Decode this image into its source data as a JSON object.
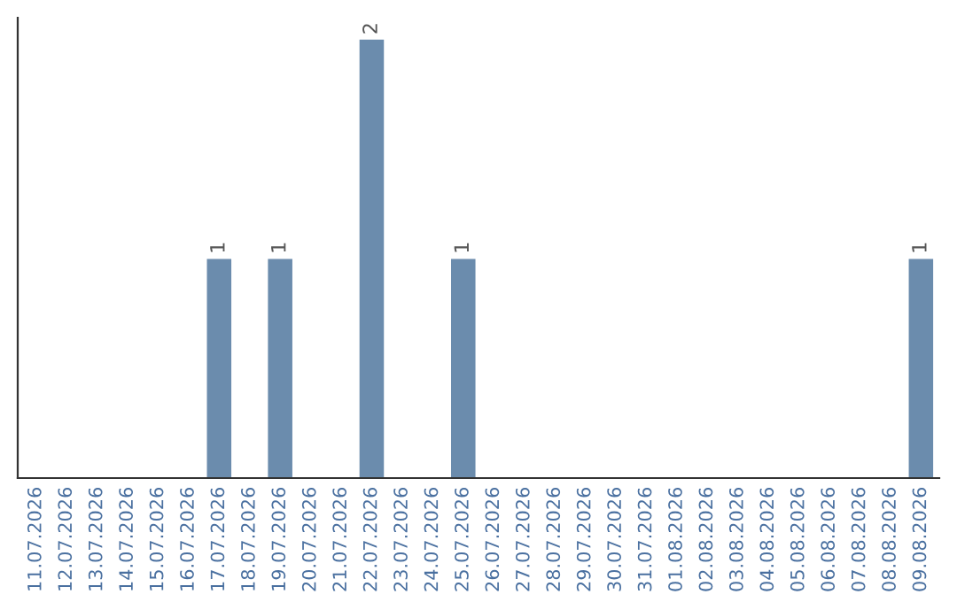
{
  "chart_data": {
    "type": "bar",
    "categories": [
      "11.07.2026",
      "12.07.2026",
      "13.07.2026",
      "14.07.2026",
      "15.07.2026",
      "16.07.2026",
      "17.07.2026",
      "18.07.2026",
      "19.07.2026",
      "20.07.2026",
      "21.07.2026",
      "22.07.2026",
      "23.07.2026",
      "24.07.2026",
      "25.07.2026",
      "26.07.2026",
      "27.07.2026",
      "28.07.2026",
      "29.07.2026",
      "30.07.2026",
      "31.07.2026",
      "01.08.2026",
      "02.08.2026",
      "03.08.2026",
      "04.08.2026",
      "05.08.2026",
      "06.08.2026",
      "07.08.2026",
      "08.08.2026",
      "09.08.2026"
    ],
    "values": [
      0,
      0,
      0,
      0,
      0,
      0,
      1,
      0,
      1,
      0,
      0,
      2,
      0,
      0,
      1,
      0,
      0,
      0,
      0,
      0,
      0,
      0,
      0,
      0,
      0,
      0,
      0,
      0,
      0,
      1
    ],
    "value_labels": [
      null,
      null,
      null,
      null,
      null,
      null,
      "1",
      null,
      "1",
      null,
      null,
      "2",
      null,
      null,
      "1",
      null,
      null,
      null,
      null,
      null,
      null,
      null,
      null,
      null,
      null,
      null,
      null,
      null,
      null,
      "1"
    ],
    "color": "#6b8cad",
    "tick_labels": "x",
    "grid": false,
    "legend": false
  }
}
